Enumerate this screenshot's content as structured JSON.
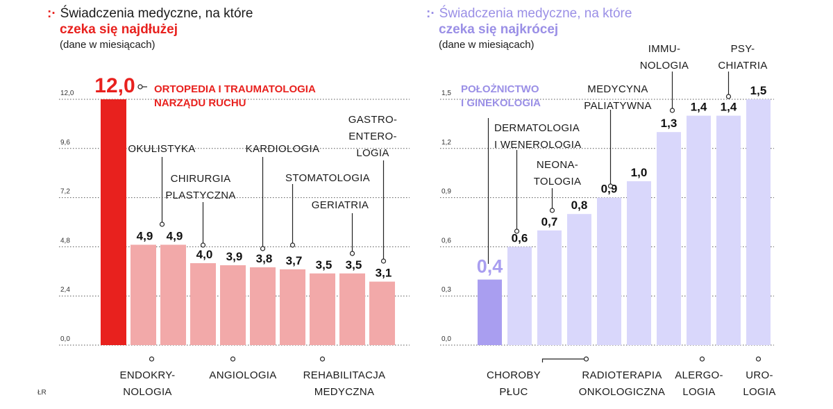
{
  "left_header": {
    "marker": ":·",
    "line1": "Świadczenia medyczne, na które",
    "line2": "czeka się najdłużej",
    "line3": "(dane w miesiącach)"
  },
  "right_header": {
    "marker": ":·",
    "line1": "Świadczenia medyczne, na które",
    "line2": "czeka się najkrócej",
    "line3": "(dane w miesiącach)"
  },
  "credit": "ŁR",
  "colors": {
    "left_highlight": "#e8211e",
    "left_bar": "#f2a9a9",
    "right_highlight": "#a99ef0",
    "right_bar": "#d9d7fb",
    "right_label": "#9a8fe6"
  },
  "chart_data": [
    {
      "type": "bar",
      "title": "Świadczenia medyczne, na które czeka się najdłużej",
      "ylabel": "(dane w miesiącach)",
      "ylim": [
        0,
        12
      ],
      "yticks": [
        "0,0",
        "2,4",
        "4,8",
        "7,2",
        "9,6",
        "12,0"
      ],
      "grid": true,
      "categories": [
        [
          "ORTOPEDIA I TRAUMATOLOGIA",
          "NARZĄDU RUCHU"
        ],
        [
          "ENDOKRY-",
          "NOLOGIA"
        ],
        [
          "OKULISTYKA"
        ],
        [
          "CHIRURGIA",
          "PLASTYCZNA"
        ],
        [
          "ANGIOLOGIA"
        ],
        [
          "KARDIOLOGIA"
        ],
        [
          "STOMATOLOGIA"
        ],
        [
          "REHABILITACJA",
          "MEDYCZNA"
        ],
        [
          "GERIATRIA"
        ],
        [
          "GASTRO-",
          "ENTERO-",
          "LOGIA"
        ]
      ],
      "values": [
        12.0,
        4.9,
        4.9,
        4.0,
        3.9,
        3.8,
        3.7,
        3.5,
        3.5,
        3.1
      ],
      "value_labels": [
        "12,0",
        "4,9",
        "4,9",
        "4,0",
        "3,9",
        "3,8",
        "3,7",
        "3,5",
        "3,5",
        "3,1"
      ]
    },
    {
      "type": "bar",
      "title": "Świadczenia medyczne, na które czeka się najkrócej",
      "ylabel": "(dane w miesiącach)",
      "ylim": [
        0,
        1.5
      ],
      "yticks": [
        "0,0",
        "0,3",
        "0,6",
        "0,9",
        "1,2",
        "1,5"
      ],
      "grid": true,
      "categories": [
        [
          "POŁOŻNICTWO",
          "I GINEKOLOGIA"
        ],
        [
          "DERMATOLOGIA",
          "I WENEROLOGIA"
        ],
        [
          "NEONA-",
          "TOLOGIA"
        ],
        [
          "CHOROBY",
          "PŁUC"
        ],
        [
          "MEDYCYNA",
          "PALIATYWNA"
        ],
        [
          "RADIOTERAPIA",
          "ONKOLOGICZNA"
        ],
        [
          "IMMU-",
          "NOLOGIA"
        ],
        [
          "ALERGO-",
          "LOGIA"
        ],
        [
          "PSY-",
          "CHIATRIA"
        ],
        [
          "URO-",
          "LOGIA"
        ]
      ],
      "values": [
        0.4,
        0.6,
        0.7,
        0.8,
        0.9,
        1.0,
        1.3,
        1.4,
        1.4,
        1.5
      ],
      "value_labels": [
        "0,4",
        "0,6",
        "0,7",
        "0,8",
        "0,9",
        "1,0",
        "1,3",
        "1,4",
        "1,4",
        "1,5"
      ]
    }
  ]
}
